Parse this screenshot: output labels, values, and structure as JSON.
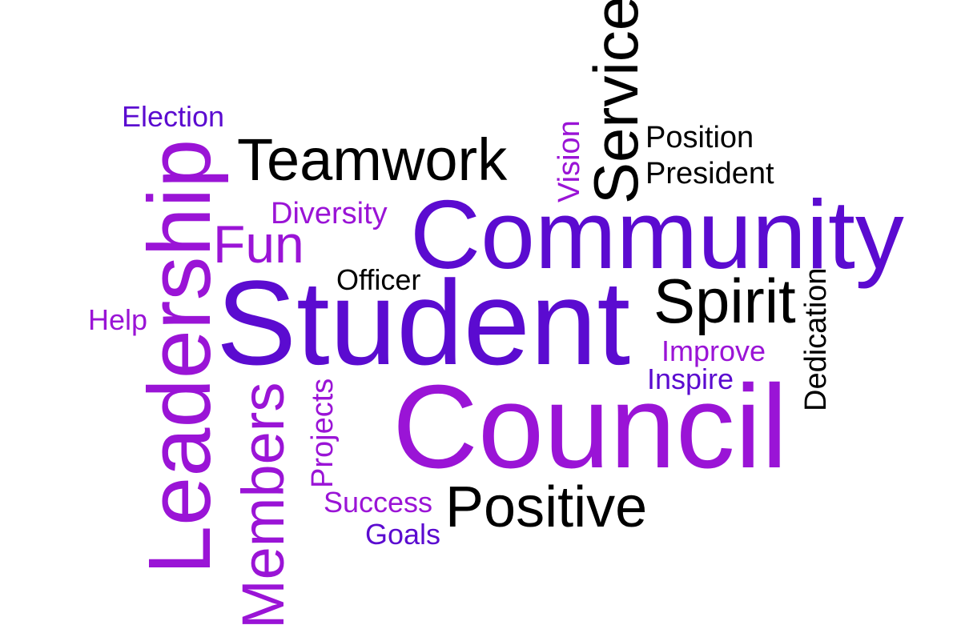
{
  "words": {
    "student": "Student",
    "council": "Council",
    "community": "Community",
    "leadership": "Leadership",
    "teamwork": "Teamwork",
    "service": "Service",
    "positive": "Positive",
    "spirit": "Spirit",
    "members": "Members",
    "fun": "Fun",
    "election": "Election",
    "position": "Position",
    "president": "President",
    "vision": "Vision",
    "diversity": "Diversity",
    "officer": "Officer",
    "help": "Help",
    "improve": "Improve",
    "inspire": "Inspire",
    "dedication": "Dedication",
    "projects": "Projects",
    "success": "Success",
    "goals": "Goals"
  },
  "colors": {
    "purple": "#9a14d6",
    "violet": "#5b0bd0",
    "indigo": "#4a0fc4",
    "black": "#000000"
  }
}
